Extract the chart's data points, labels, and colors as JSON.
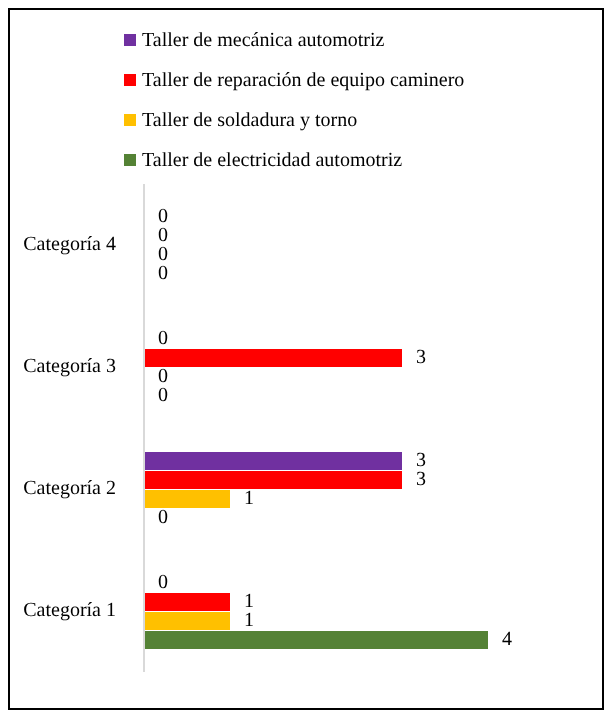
{
  "chart_data": {
    "type": "bar",
    "orientation": "horizontal",
    "categories": [
      "Categoría 4",
      "Categoría 3",
      "Categoría 2",
      "Categoría 1"
    ],
    "series": [
      {
        "name": "Taller de mecánica automotriz",
        "color": "#7030a0",
        "values": [
          0,
          0,
          3,
          0
        ]
      },
      {
        "name": "Taller de reparación de equipo caminero",
        "color": "#ff0000",
        "values": [
          0,
          3,
          3,
          1
        ]
      },
      {
        "name": "Taller de soldadura y torno",
        "color": "#ffc000",
        "values": [
          0,
          0,
          1,
          1
        ]
      },
      {
        "name": "Taller de electricidad automotriz",
        "color": "#548235",
        "values": [
          0,
          0,
          0,
          4
        ]
      }
    ],
    "tick_labels": "y",
    "data_labels": true,
    "legend": "top",
    "grid": false
  }
}
